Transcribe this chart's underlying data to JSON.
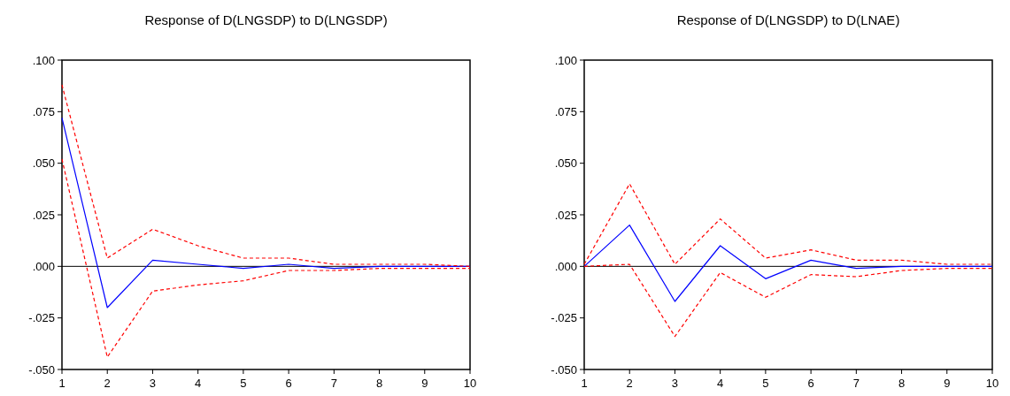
{
  "chart_data": [
    {
      "type": "line",
      "title": "Response of D(LNGSDP) to D(LNGSDP)",
      "x": [
        1,
        2,
        3,
        4,
        5,
        6,
        7,
        8,
        9,
        10
      ],
      "xlim": [
        1,
        10
      ],
      "xticks": [
        1,
        2,
        3,
        4,
        5,
        6,
        7,
        8,
        9,
        10
      ],
      "ylim": [
        -0.05,
        0.1
      ],
      "yticks": [
        {
          "value": -0.05,
          "label": "-.050"
        },
        {
          "value": -0.025,
          "label": "-.025"
        },
        {
          "value": 0,
          "label": ".000"
        },
        {
          "value": 0.025,
          "label": ".025"
        },
        {
          "value": 0.05,
          "label": ".050"
        },
        {
          "value": 0.075,
          "label": ".075"
        },
        {
          "value": 0.1,
          "label": ".100"
        }
      ],
      "grid": false,
      "ref_lines": [
        {
          "axis": "y",
          "value": 0,
          "color": "#000000"
        }
      ],
      "series": [
        {
          "color": "#0000ff",
          "line_style": "solid",
          "values": [
            0.072,
            -0.02,
            0.003,
            0.001,
            -0.001,
            0.001,
            -0.001,
            0,
            0,
            0
          ]
        },
        {
          "color": "#ff0000",
          "line_style": "dashed",
          "values": [
            0.088,
            0.004,
            0.018,
            0.01,
            0.004,
            0.004,
            0.001,
            0.001,
            0.001,
            0
          ]
        },
        {
          "color": "#ff0000",
          "line_style": "dashed",
          "values": [
            0.052,
            -0.044,
            -0.012,
            -0.009,
            -0.007,
            -0.002,
            -0.002,
            -0.001,
            -0.001,
            -0.001
          ]
        }
      ]
    },
    {
      "type": "line",
      "title": "Response of D(LNGSDP) to D(LNAE)",
      "x": [
        1,
        2,
        3,
        4,
        5,
        6,
        7,
        8,
        9,
        10
      ],
      "xlim": [
        1,
        10
      ],
      "xticks": [
        1,
        2,
        3,
        4,
        5,
        6,
        7,
        8,
        9,
        10
      ],
      "ylim": [
        -0.05,
        0.1
      ],
      "yticks": [
        {
          "value": -0.05,
          "label": "-.050"
        },
        {
          "value": -0.025,
          "label": "-.025"
        },
        {
          "value": 0,
          "label": ".000"
        },
        {
          "value": 0.025,
          "label": ".025"
        },
        {
          "value": 0.05,
          "label": ".050"
        },
        {
          "value": 0.075,
          "label": ".075"
        },
        {
          "value": 0.1,
          "label": ".100"
        }
      ],
      "grid": false,
      "ref_lines": [
        {
          "axis": "y",
          "value": 0,
          "color": "#000000"
        }
      ],
      "series": [
        {
          "color": "#0000ff",
          "line_style": "solid",
          "values": [
            0,
            0.02,
            -0.017,
            0.01,
            -0.006,
            0.003,
            -0.001,
            0,
            0,
            0
          ]
        },
        {
          "color": "#ff0000",
          "line_style": "dashed",
          "values": [
            0.001,
            0.04,
            0.001,
            0.023,
            0.004,
            0.008,
            0.003,
            0.003,
            0.001,
            0.001
          ]
        },
        {
          "color": "#ff0000",
          "line_style": "dashed",
          "values": [
            0,
            0.001,
            -0.034,
            -0.003,
            -0.015,
            -0.004,
            -0.005,
            -0.002,
            -0.001,
            -0.001
          ]
        }
      ]
    }
  ]
}
